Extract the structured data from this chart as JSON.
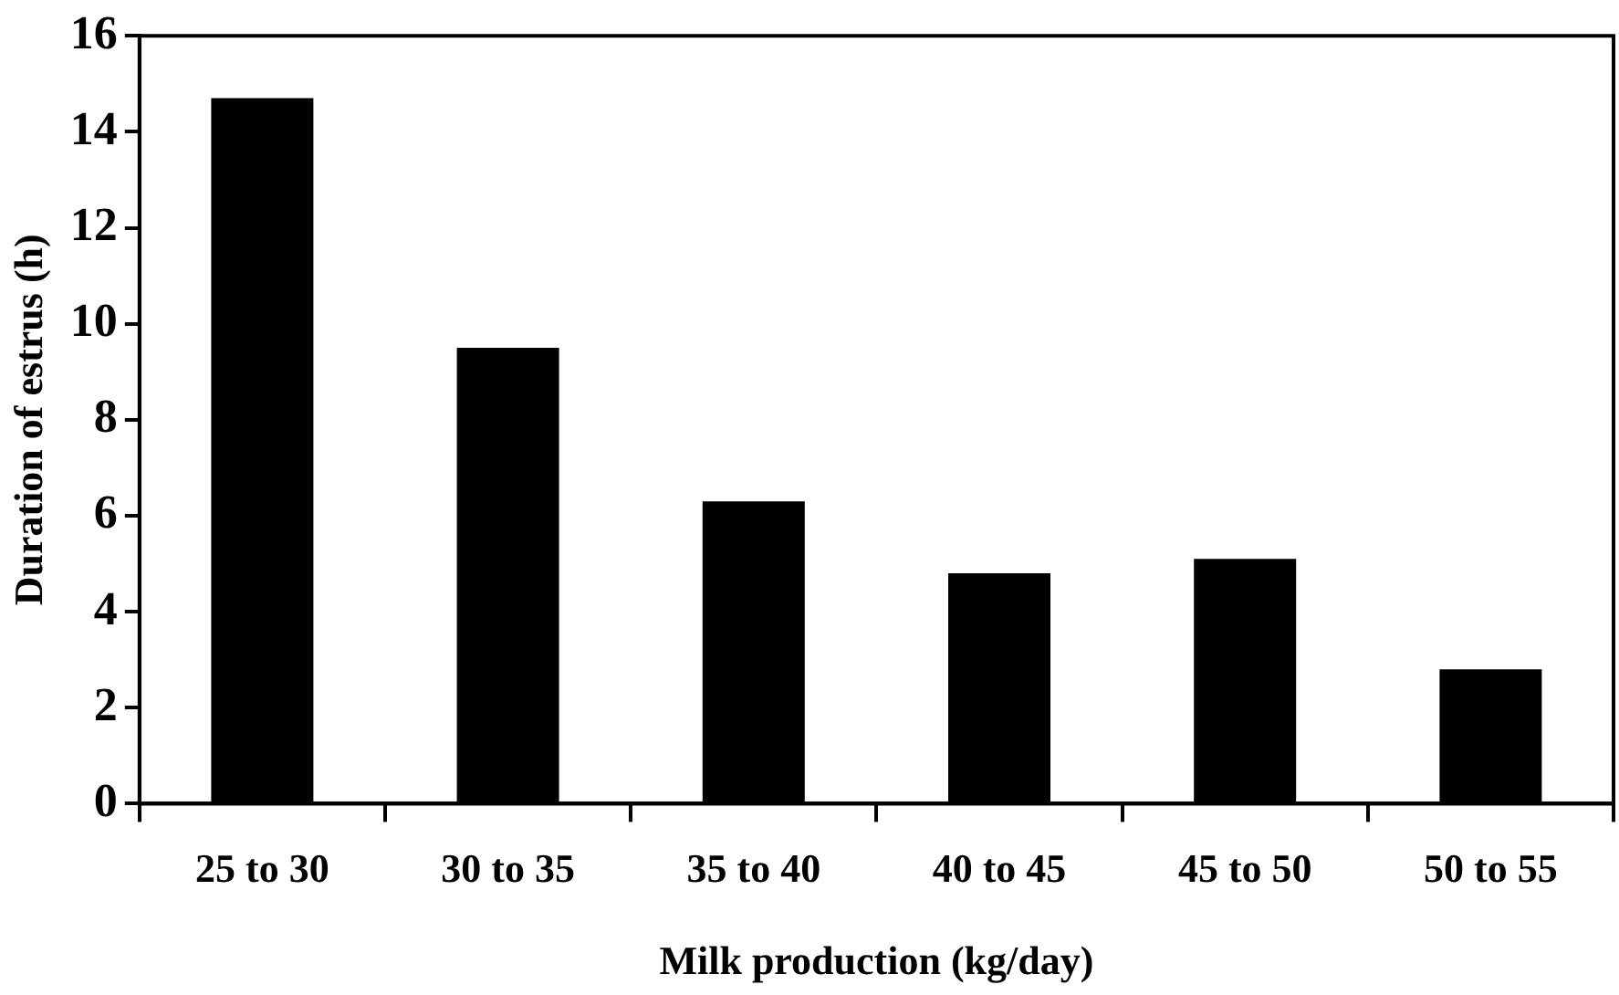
{
  "chart_data": {
    "type": "bar",
    "xlabel": "Milk production (kg/day)",
    "ylabel": "Duration of estrus (h)",
    "categories": [
      "25 to 30",
      "30 to 35",
      "35 to 40",
      "40 to 45",
      "45 to 50",
      "50 to 55"
    ],
    "values": [
      14.7,
      9.5,
      6.3,
      4.8,
      5.1,
      2.8
    ],
    "color": "#000000",
    "ylim": [
      0,
      16
    ],
    "yticks": [
      0,
      2,
      4,
      6,
      8,
      10,
      12,
      14,
      16
    ],
    "grid": false,
    "legend": false
  }
}
